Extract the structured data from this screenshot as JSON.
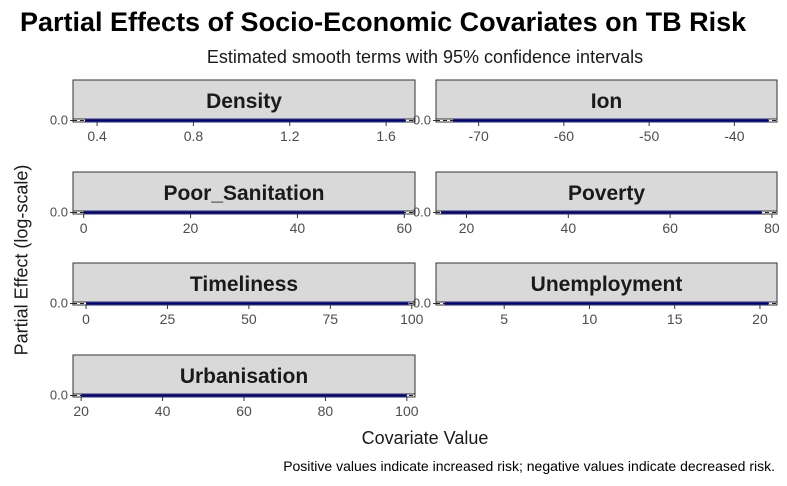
{
  "title": "Partial Effects of Socio-Economic Covariates on TB Risk",
  "subtitle": "Estimated smooth terms with 95% confidence intervals",
  "caption": "Positive values indicate increased risk; negative values indicate decreased risk.",
  "colors": {
    "line": "#00008b",
    "band": "#9e9e9e",
    "strip": "#d9d9d9",
    "strip_border": "#333333",
    "axis_text": "#4d4d4d"
  },
  "chart_data": {
    "type": "line",
    "xlabel": "Covariate Value",
    "ylabel": "Partial Effect (log-scale)",
    "panels": [
      {
        "name": "Density",
        "xlim": [
          0.3,
          1.72
        ],
        "xticks": [
          0.4,
          0.8,
          1.2,
          1.6
        ],
        "xtick_labels": [
          "0.4",
          "0.8",
          "1.2",
          "1.6"
        ],
        "ylim": [
          -0.05,
          0.05
        ],
        "ytick_label": "0.0",
        "x": [
          0.35,
          0.6,
          0.9,
          1.2,
          1.5,
          1.68
        ],
        "y": [
          0,
          0,
          0,
          0,
          0,
          0
        ]
      },
      {
        "name": "Ion",
        "xlim": [
          -75,
          -35
        ],
        "xticks": [
          -70,
          -60,
          -50,
          -40
        ],
        "xtick_labels": [
          "-70",
          "-60",
          "-50",
          "-40"
        ],
        "ylim": [
          -0.05,
          0.05
        ],
        "ytick_label": "0.0",
        "x": [
          -73,
          -60,
          -50,
          -40,
          -36
        ],
        "y": [
          0,
          0,
          0,
          0,
          0
        ]
      },
      {
        "name": "Poor_Sanitation",
        "xlim": [
          -2,
          62
        ],
        "xticks": [
          0,
          20,
          40,
          60
        ],
        "xtick_labels": [
          "0",
          "20",
          "40",
          "60"
        ],
        "ylim": [
          -0.05,
          0.05
        ],
        "ytick_label": "0.0",
        "x": [
          0,
          15,
          30,
          45,
          60
        ],
        "y": [
          0,
          0,
          0,
          0,
          0
        ]
      },
      {
        "name": "Poverty",
        "xlim": [
          14,
          81
        ],
        "xticks": [
          20,
          40,
          60,
          80
        ],
        "xtick_labels": [
          "20",
          "40",
          "60",
          "80"
        ],
        "ylim": [
          -0.05,
          0.05
        ],
        "ytick_label": "0.0",
        "x": [
          15,
          30,
          45,
          60,
          78
        ],
        "y": [
          0,
          0,
          0,
          0,
          0
        ]
      },
      {
        "name": "Timeliness",
        "xlim": [
          -4,
          101
        ],
        "xticks": [
          0,
          25,
          50,
          75,
          100
        ],
        "xtick_labels": [
          "0",
          "25",
          "50",
          "75",
          "100"
        ],
        "ylim": [
          -0.05,
          0.05
        ],
        "ytick_label": "0.0",
        "x": [
          0,
          25,
          50,
          75,
          99
        ],
        "y": [
          0,
          0,
          0,
          0,
          0
        ]
      },
      {
        "name": "Unemployment",
        "xlim": [
          1,
          21
        ],
        "xticks": [
          5,
          10,
          15,
          20
        ],
        "xtick_labels": [
          "5",
          "10",
          "15",
          "20"
        ],
        "ylim": [
          -0.05,
          0.05
        ],
        "ytick_label": "0.0",
        "x": [
          1.5,
          6,
          10,
          15,
          20.5
        ],
        "y": [
          0,
          0,
          0,
          0,
          0
        ]
      },
      {
        "name": "Urbanisation",
        "xlim": [
          18,
          102
        ],
        "xticks": [
          20,
          40,
          60,
          80,
          100
        ],
        "xtick_labels": [
          "20",
          "40",
          "60",
          "80",
          "100"
        ],
        "ylim": [
          -0.05,
          0.05
        ],
        "ytick_label": "0.0",
        "x": [
          20,
          40,
          60,
          80,
          100
        ],
        "y": [
          0,
          0,
          0,
          0,
          0
        ]
      }
    ]
  }
}
